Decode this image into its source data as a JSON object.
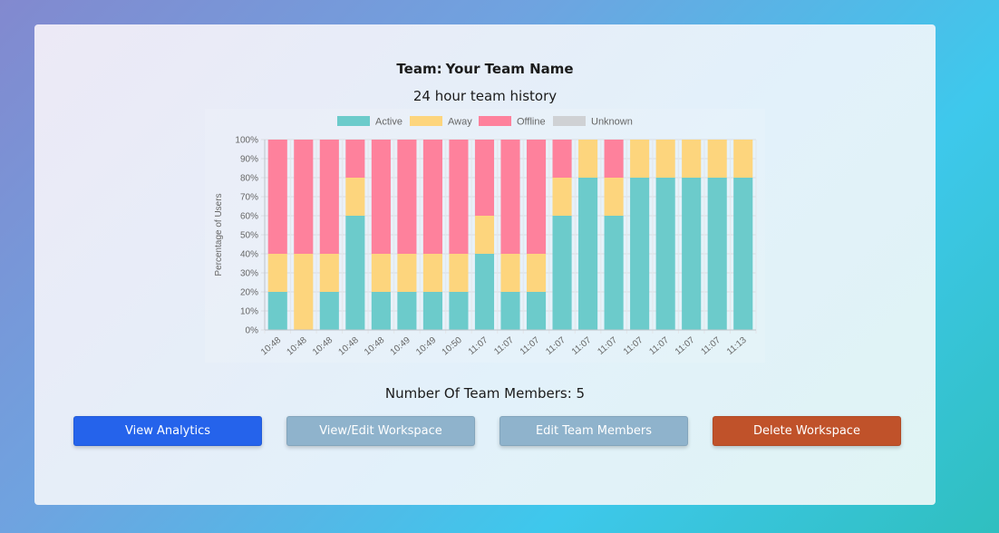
{
  "team": {
    "label": "Team:",
    "name": "Your Team Name"
  },
  "history_title": "24 hour team history",
  "members": {
    "label": "Number Of Team Members:",
    "count": "5"
  },
  "buttons": {
    "analytics": "View Analytics",
    "workspace": "View/Edit Workspace",
    "members": "Edit Team Members",
    "delete": "Delete Workspace"
  },
  "colors": {
    "active": "#6ccbcb",
    "away": "#fdd57d",
    "offline": "#fe819c",
    "unknown": "#cfd1d4",
    "analytics_button": "#2563eb",
    "secondary_button": "#8fb3cc",
    "delete_button": "#c0522a"
  },
  "chart_data": {
    "type": "bar",
    "stacked": true,
    "ylabel": "Percentage of Users",
    "ylim": [
      0,
      100
    ],
    "yticks": [
      "0%",
      "10%",
      "20%",
      "30%",
      "40%",
      "50%",
      "60%",
      "70%",
      "80%",
      "90%",
      "100%"
    ],
    "grid": true,
    "legend_position": "top",
    "categories": [
      "10:48",
      "10:48",
      "10:48",
      "10:48",
      "10:48",
      "10:49",
      "10:49",
      "10:50",
      "11:07",
      "11:07",
      "11:07",
      "11:07",
      "11:07",
      "11:07",
      "11:07",
      "11:07",
      "11:07",
      "11:07",
      "11:13"
    ],
    "series": [
      {
        "name": "Active",
        "color": "#6ccbcb",
        "values": [
          20,
          0,
          20,
          60,
          20,
          20,
          20,
          20,
          40,
          20,
          20,
          60,
          80,
          60,
          80,
          80,
          80,
          80,
          80
        ]
      },
      {
        "name": "Away",
        "color": "#fdd57d",
        "values": [
          20,
          40,
          20,
          20,
          20,
          20,
          20,
          20,
          20,
          20,
          20,
          20,
          20,
          20,
          20,
          20,
          20,
          20,
          20
        ]
      },
      {
        "name": "Offline",
        "color": "#fe819c",
        "values": [
          60,
          60,
          60,
          20,
          60,
          60,
          60,
          60,
          40,
          60,
          60,
          20,
          0,
          20,
          0,
          0,
          0,
          0,
          0
        ]
      },
      {
        "name": "Unknown",
        "color": "#cfd1d4",
        "values": [
          0,
          0,
          0,
          0,
          0,
          0,
          0,
          0,
          0,
          0,
          0,
          0,
          0,
          0,
          0,
          0,
          0,
          0,
          0
        ]
      }
    ]
  }
}
